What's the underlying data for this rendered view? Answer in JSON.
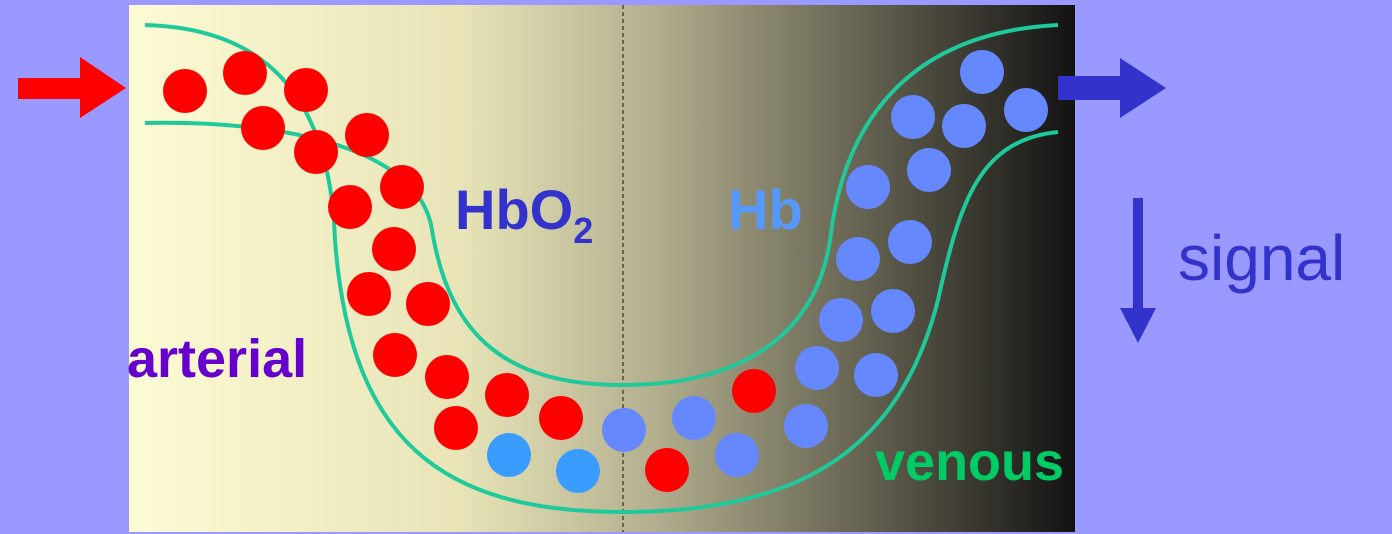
{
  "labels": {
    "hbo2_main": "HbO",
    "hbo2_sub": "2",
    "hb": "Hb",
    "arterial": "arterial",
    "venous": "venous",
    "signal": "signal"
  },
  "colors": {
    "page_bg": "#9999ff",
    "panel_light": "#fdfbd4",
    "panel_dark": "#121212",
    "vessel": "#1ec99a",
    "oxy_cell": "#ff0000",
    "deoxy_cell": "#6688ff",
    "deoxy_cell_light": "#3a9cff",
    "inflow_arrow": "#ff0000",
    "outflow_arrow": "#3333cc",
    "arterial_text": "#6600cc",
    "venous_text": "#00cc66",
    "hbo2_text": "#3333cc",
    "hb_text": "#5599ff",
    "signal_text": "#3333cc"
  },
  "icons": [
    "inflow-arrow-icon",
    "outflow-arrow-icon",
    "signal-down-arrow-icon"
  ]
}
